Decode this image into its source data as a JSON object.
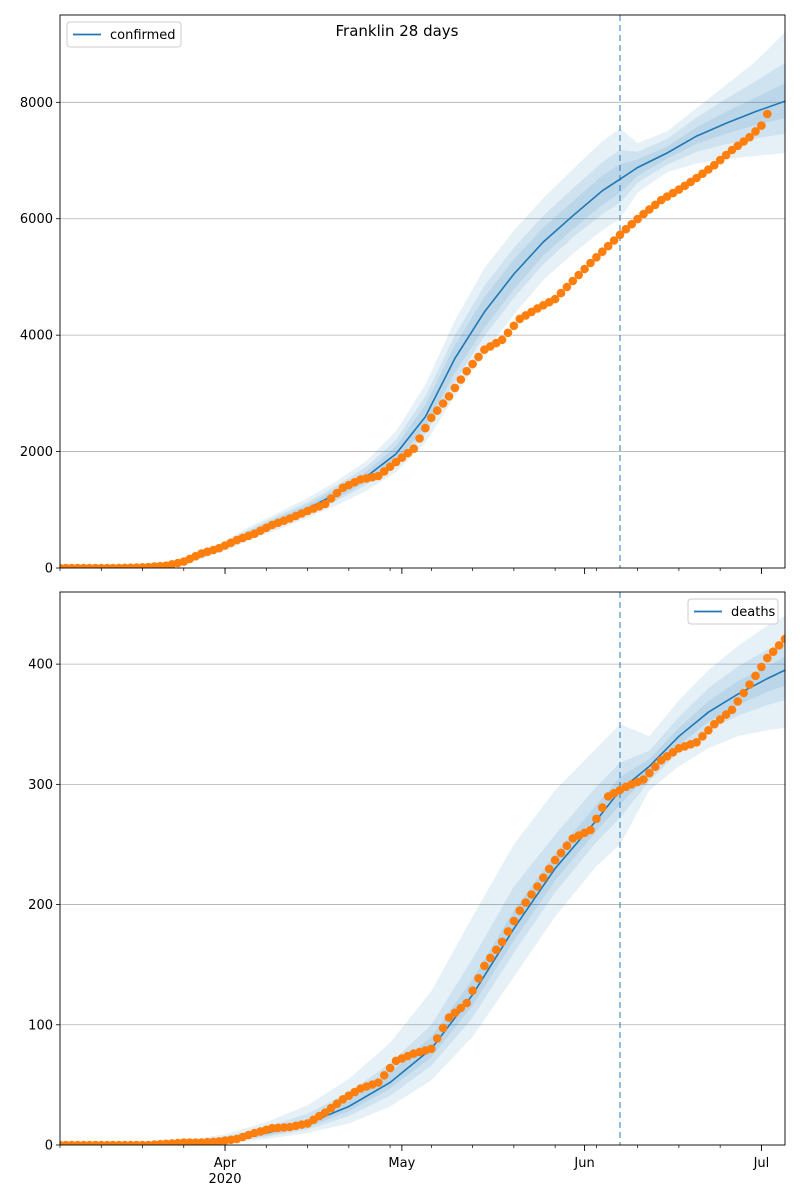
{
  "figure_title": "Franklin 28 days",
  "x_axis": {
    "month_labels": [
      {
        "date": "2020-04-01",
        "text": "Apr"
      },
      {
        "date": "2020-05-01",
        "text": "May"
      },
      {
        "date": "2020-06-01",
        "text": "Jun"
      },
      {
        "date": "2020-07-01",
        "text": "Jul"
      }
    ],
    "year_label": {
      "date": "2020-04-01",
      "text": "2020"
    }
  },
  "colors": {
    "model_line": "#1f77b4",
    "band": "#1f77b4",
    "observed_points": "#ff7f0e",
    "forecast_start_line": "#1f77b4",
    "grid": "#b0b0b0"
  },
  "chart_data": [
    {
      "type": "line",
      "title": "Franklin 28 days",
      "xlabel": "",
      "ylabel": "",
      "xlim": [
        "2020-03-04",
        "2020-07-05"
      ],
      "ylim": [
        0,
        9500
      ],
      "yticks": [
        0,
        2000,
        4000,
        6000,
        8000
      ],
      "grid": "horizontal",
      "legend": {
        "position": "top-left",
        "entries": [
          "confirmed"
        ]
      },
      "forecast_start": "2020-06-07",
      "model": {
        "name": "confirmed",
        "x": [
          "2020-03-04",
          "2020-03-14",
          "2020-03-24",
          "2020-03-28",
          "2020-04-01",
          "2020-04-05",
          "2020-04-10",
          "2020-04-15",
          "2020-04-20",
          "2020-04-25",
          "2020-04-30",
          "2020-05-05",
          "2020-05-10",
          "2020-05-15",
          "2020-05-20",
          "2020-05-25",
          "2020-05-30",
          "2020-06-04",
          "2020-06-07",
          "2020-06-10",
          "2020-06-15",
          "2020-06-20",
          "2020-06-25",
          "2020-06-30",
          "2020-07-05"
        ],
        "values": [
          0,
          5,
          60,
          200,
          380,
          580,
          800,
          1020,
          1280,
          1570,
          1960,
          2600,
          3600,
          4400,
          5050,
          5600,
          6050,
          6480,
          6680,
          6880,
          7130,
          7420,
          7640,
          7840,
          8020
        ]
      },
      "bands": [
        {
          "level": "outer",
          "lower": [
            0,
            3,
            40,
            150,
            300,
            470,
            660,
            860,
            1080,
            1330,
            1650,
            2150,
            2950,
            3700,
            4350,
            4950,
            5400,
            5800,
            6000,
            6450,
            6800,
            6950,
            7020,
            7080,
            7130
          ],
          "upper": [
            0,
            8,
            85,
            260,
            470,
            700,
            950,
            1200,
            1500,
            1840,
            2350,
            3150,
            4250,
            5150,
            5800,
            6350,
            6850,
            7330,
            7550,
            7300,
            7500,
            7900,
            8300,
            8700,
            9200
          ]
        },
        {
          "level": "middle",
          "lower": [
            0,
            4,
            48,
            170,
            330,
            510,
            710,
            925,
            1160,
            1430,
            1770,
            2300,
            3200,
            3980,
            4640,
            5220,
            5680,
            6080,
            6270,
            6620,
            6930,
            7150,
            7280,
            7380,
            7460
          ],
          "upper": [
            0,
            7,
            75,
            235,
            440,
            660,
            900,
            1130,
            1420,
            1740,
            2200,
            2950,
            4000,
            4850,
            5500,
            6050,
            6520,
            6970,
            7180,
            7150,
            7370,
            7740,
            8060,
            8360,
            8680
          ]
        },
        {
          "level": "inner",
          "lower": [
            0,
            4,
            53,
            182,
            350,
            535,
            740,
            960,
            1205,
            1485,
            1840,
            2420,
            3350,
            4130,
            4790,
            5370,
            5820,
            6240,
            6440,
            6740,
            7030,
            7290,
            7460,
            7610,
            7730
          ],
          "upper": [
            0,
            6,
            68,
            220,
            415,
            625,
            860,
            1085,
            1360,
            1660,
            2090,
            2800,
            3830,
            4650,
            5300,
            5850,
            6300,
            6740,
            6940,
            7020,
            7240,
            7570,
            7840,
            8080,
            8330
          ]
        }
      ],
      "observed": {
        "x": [
          "2020-03-04",
          "2020-03-07",
          "2020-03-10",
          "2020-03-13",
          "2020-03-16",
          "2020-03-19",
          "2020-03-22",
          "2020-03-25",
          "2020-03-28",
          "2020-03-31",
          "2020-04-03",
          "2020-04-06",
          "2020-04-09",
          "2020-04-12",
          "2020-04-15",
          "2020-04-18",
          "2020-04-21",
          "2020-04-24",
          "2020-04-27",
          "2020-04-30",
          "2020-05-03",
          "2020-05-06",
          "2020-05-09",
          "2020-05-12",
          "2020-05-15",
          "2020-05-18",
          "2020-05-21",
          "2020-05-24",
          "2020-05-27",
          "2020-05-30",
          "2020-06-02",
          "2020-06-05",
          "2020-06-08",
          "2020-06-11",
          "2020-06-14",
          "2020-06-17",
          "2020-06-20",
          "2020-06-23",
          "2020-06-26",
          "2020-06-29",
          "2020-07-01",
          "2020-07-02"
        ],
        "values": [
          0,
          0,
          0,
          0,
          5,
          15,
          40,
          110,
          250,
          340,
          480,
          590,
          740,
          850,
          980,
          1100,
          1380,
          1520,
          1580,
          1820,
          2050,
          2580,
          2950,
          3380,
          3750,
          3920,
          4280,
          4460,
          4620,
          4930,
          5240,
          5530,
          5820,
          6080,
          6320,
          6500,
          6700,
          6920,
          7180,
          7400,
          7600,
          7800
        ],
        "raw_note": ""
      }
    },
    {
      "type": "line",
      "title": "",
      "xlabel": "",
      "ylabel": "",
      "xlim": [
        "2020-03-04",
        "2020-07-05"
      ],
      "ylim": [
        0,
        460
      ],
      "yticks": [
        0,
        100,
        200,
        300,
        400
      ],
      "grid": "horizontal",
      "legend": {
        "position": "top-right",
        "entries": [
          "deaths"
        ]
      },
      "forecast_start": "2020-06-07",
      "model": {
        "name": "deaths",
        "x": [
          "2020-03-04",
          "2020-03-14",
          "2020-03-24",
          "2020-04-01",
          "2020-04-08",
          "2020-04-15",
          "2020-04-22",
          "2020-04-29",
          "2020-05-06",
          "2020-05-13",
          "2020-05-20",
          "2020-05-27",
          "2020-06-03",
          "2020-06-07",
          "2020-06-12",
          "2020-06-17",
          "2020-06-22",
          "2020-06-27",
          "2020-07-02",
          "2020-07-05"
        ],
        "values": [
          0,
          0,
          1,
          4,
          10,
          18,
          32,
          52,
          80,
          125,
          180,
          230,
          270,
          295,
          315,
          340,
          360,
          375,
          388,
          395
        ]
      },
      "bands": [
        {
          "level": "outer",
          "lower": [
            0,
            0,
            0,
            1,
            5,
            10,
            18,
            32,
            54,
            90,
            140,
            190,
            232,
            250,
            295,
            315,
            330,
            340,
            345,
            347
          ],
          "upper": [
            0,
            0,
            3,
            9,
            19,
            33,
            55,
            85,
            128,
            190,
            250,
            295,
            330,
            350,
            340,
            370,
            395,
            415,
            432,
            440
          ]
        },
        {
          "level": "middle",
          "lower": [
            0,
            0,
            0,
            2,
            7,
            13,
            24,
            41,
            66,
            106,
            160,
            210,
            252,
            272,
            303,
            327,
            345,
            357,
            366,
            370
          ],
          "upper": [
            0,
            0,
            2,
            7,
            15,
            26,
            44,
            68,
            100,
            155,
            215,
            258,
            298,
            318,
            328,
            356,
            380,
            398,
            412,
            418
          ]
        },
        {
          "level": "inner",
          "lower": [
            0,
            0,
            1,
            3,
            8,
            15,
            28,
            47,
            73,
            116,
            170,
            220,
            261,
            283,
            309,
            333,
            352,
            366,
            377,
            382
          ],
          "upper": [
            0,
            0,
            1,
            5,
            12,
            21,
            37,
            60,
            90,
            138,
            195,
            242,
            283,
            306,
            321,
            347,
            369,
            386,
            398,
            406
          ]
        }
      ],
      "observed": {
        "x": [
          "2020-03-04",
          "2020-03-07",
          "2020-03-10",
          "2020-03-13",
          "2020-03-16",
          "2020-03-19",
          "2020-03-22",
          "2020-03-25",
          "2020-03-28",
          "2020-03-31",
          "2020-04-03",
          "2020-04-06",
          "2020-04-09",
          "2020-04-12",
          "2020-04-15",
          "2020-04-18",
          "2020-04-21",
          "2020-04-24",
          "2020-04-27",
          "2020-04-30",
          "2020-05-03",
          "2020-05-06",
          "2020-05-09",
          "2020-05-12",
          "2020-05-15",
          "2020-05-18",
          "2020-05-21",
          "2020-05-24",
          "2020-05-27",
          "2020-05-30",
          "2020-06-02",
          "2020-06-05",
          "2020-06-08",
          "2020-06-11",
          "2020-06-14",
          "2020-06-17",
          "2020-06-20",
          "2020-06-23",
          "2020-06-26",
          "2020-06-29",
          "2020-07-02",
          "2020-07-05"
        ],
        "values": [
          0,
          0,
          0,
          0,
          0,
          0,
          1,
          2,
          2,
          3,
          5,
          10,
          14,
          15,
          18,
          27,
          38,
          47,
          52,
          70,
          76,
          80,
          106,
          118,
          149,
          169,
          195,
          215,
          237,
          255,
          262,
          290,
          298,
          304,
          320,
          330,
          335,
          350,
          362,
          383,
          405,
          421
        ]
      }
    }
  ]
}
